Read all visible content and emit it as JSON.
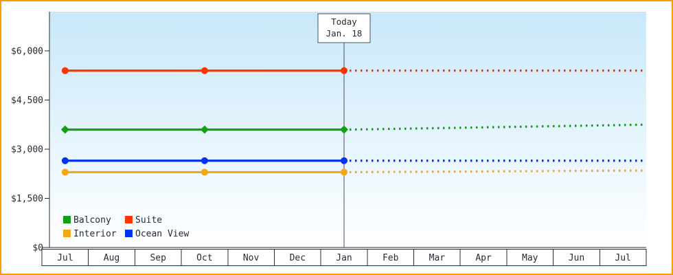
{
  "window": {
    "border_color": "#ff9900",
    "background": "#ffffff"
  },
  "chart_data": {
    "type": "line",
    "axis_color": "#252a33",
    "plot_background": {
      "top_color": "#c9e8fa",
      "bottom_color": "#ffffff"
    },
    "x_axis": {
      "tick_labels": [
        "Jul",
        "Aug",
        "Sep",
        "Oct",
        "Nov",
        "Dec",
        "Jan",
        "Feb",
        "Mar",
        "Apr",
        "May",
        "Jun",
        "Jul"
      ]
    },
    "y_axis": {
      "tick_values": [
        0,
        1500,
        3000,
        4500,
        6000
      ],
      "tick_labels": [
        "$0",
        "$1,500",
        "$3,000",
        "$4,500",
        "$6,000"
      ],
      "range": [
        0,
        7200
      ]
    },
    "today_marker": {
      "line1": "Today",
      "line2": "Jan. 18",
      "month_index": 6,
      "color": "#4a505c"
    },
    "series": [
      {
        "name": "Suite",
        "color": "#ff3300",
        "marker": "circle",
        "style_history": "solid",
        "style_forecast": "dotted",
        "history": {
          "month_indices": [
            0,
            3,
            6
          ],
          "months": [
            "Jul",
            "Oct",
            "Jan"
          ],
          "values": [
            5400,
            5400,
            5400
          ]
        },
        "forecast": {
          "end_value": 5400
        }
      },
      {
        "name": "Balcony",
        "color": "#12a012",
        "marker": "diamond",
        "style_history": "solid",
        "style_forecast": "dotted",
        "history": {
          "month_indices": [
            0,
            3,
            6
          ],
          "months": [
            "Jul",
            "Oct",
            "Jan"
          ],
          "values": [
            3600,
            3600,
            3600
          ]
        },
        "forecast": {
          "end_value": 3750
        }
      },
      {
        "name": "Ocean View",
        "color": "#0033ee",
        "marker": "circle",
        "style_history": "solid",
        "style_forecast": "dotted",
        "history": {
          "month_indices": [
            0,
            3,
            6
          ],
          "months": [
            "Jul",
            "Oct",
            "Jan"
          ],
          "values": [
            2650,
            2650,
            2650
          ]
        },
        "forecast": {
          "end_value": 2650
        }
      },
      {
        "name": "Interior",
        "color": "#f0a818",
        "marker": "circle",
        "style_history": "solid",
        "style_forecast": "dotted",
        "history": {
          "month_indices": [
            0,
            3,
            6
          ],
          "months": [
            "Jul",
            "Oct",
            "Jan"
          ],
          "values": [
            2300,
            2300,
            2300
          ]
        },
        "forecast": {
          "end_value": 2350
        }
      }
    ],
    "legend": {
      "position": "bottom-left",
      "rows": [
        [
          "Balcony",
          "Suite"
        ],
        [
          "Interior",
          "Ocean View"
        ]
      ]
    }
  }
}
